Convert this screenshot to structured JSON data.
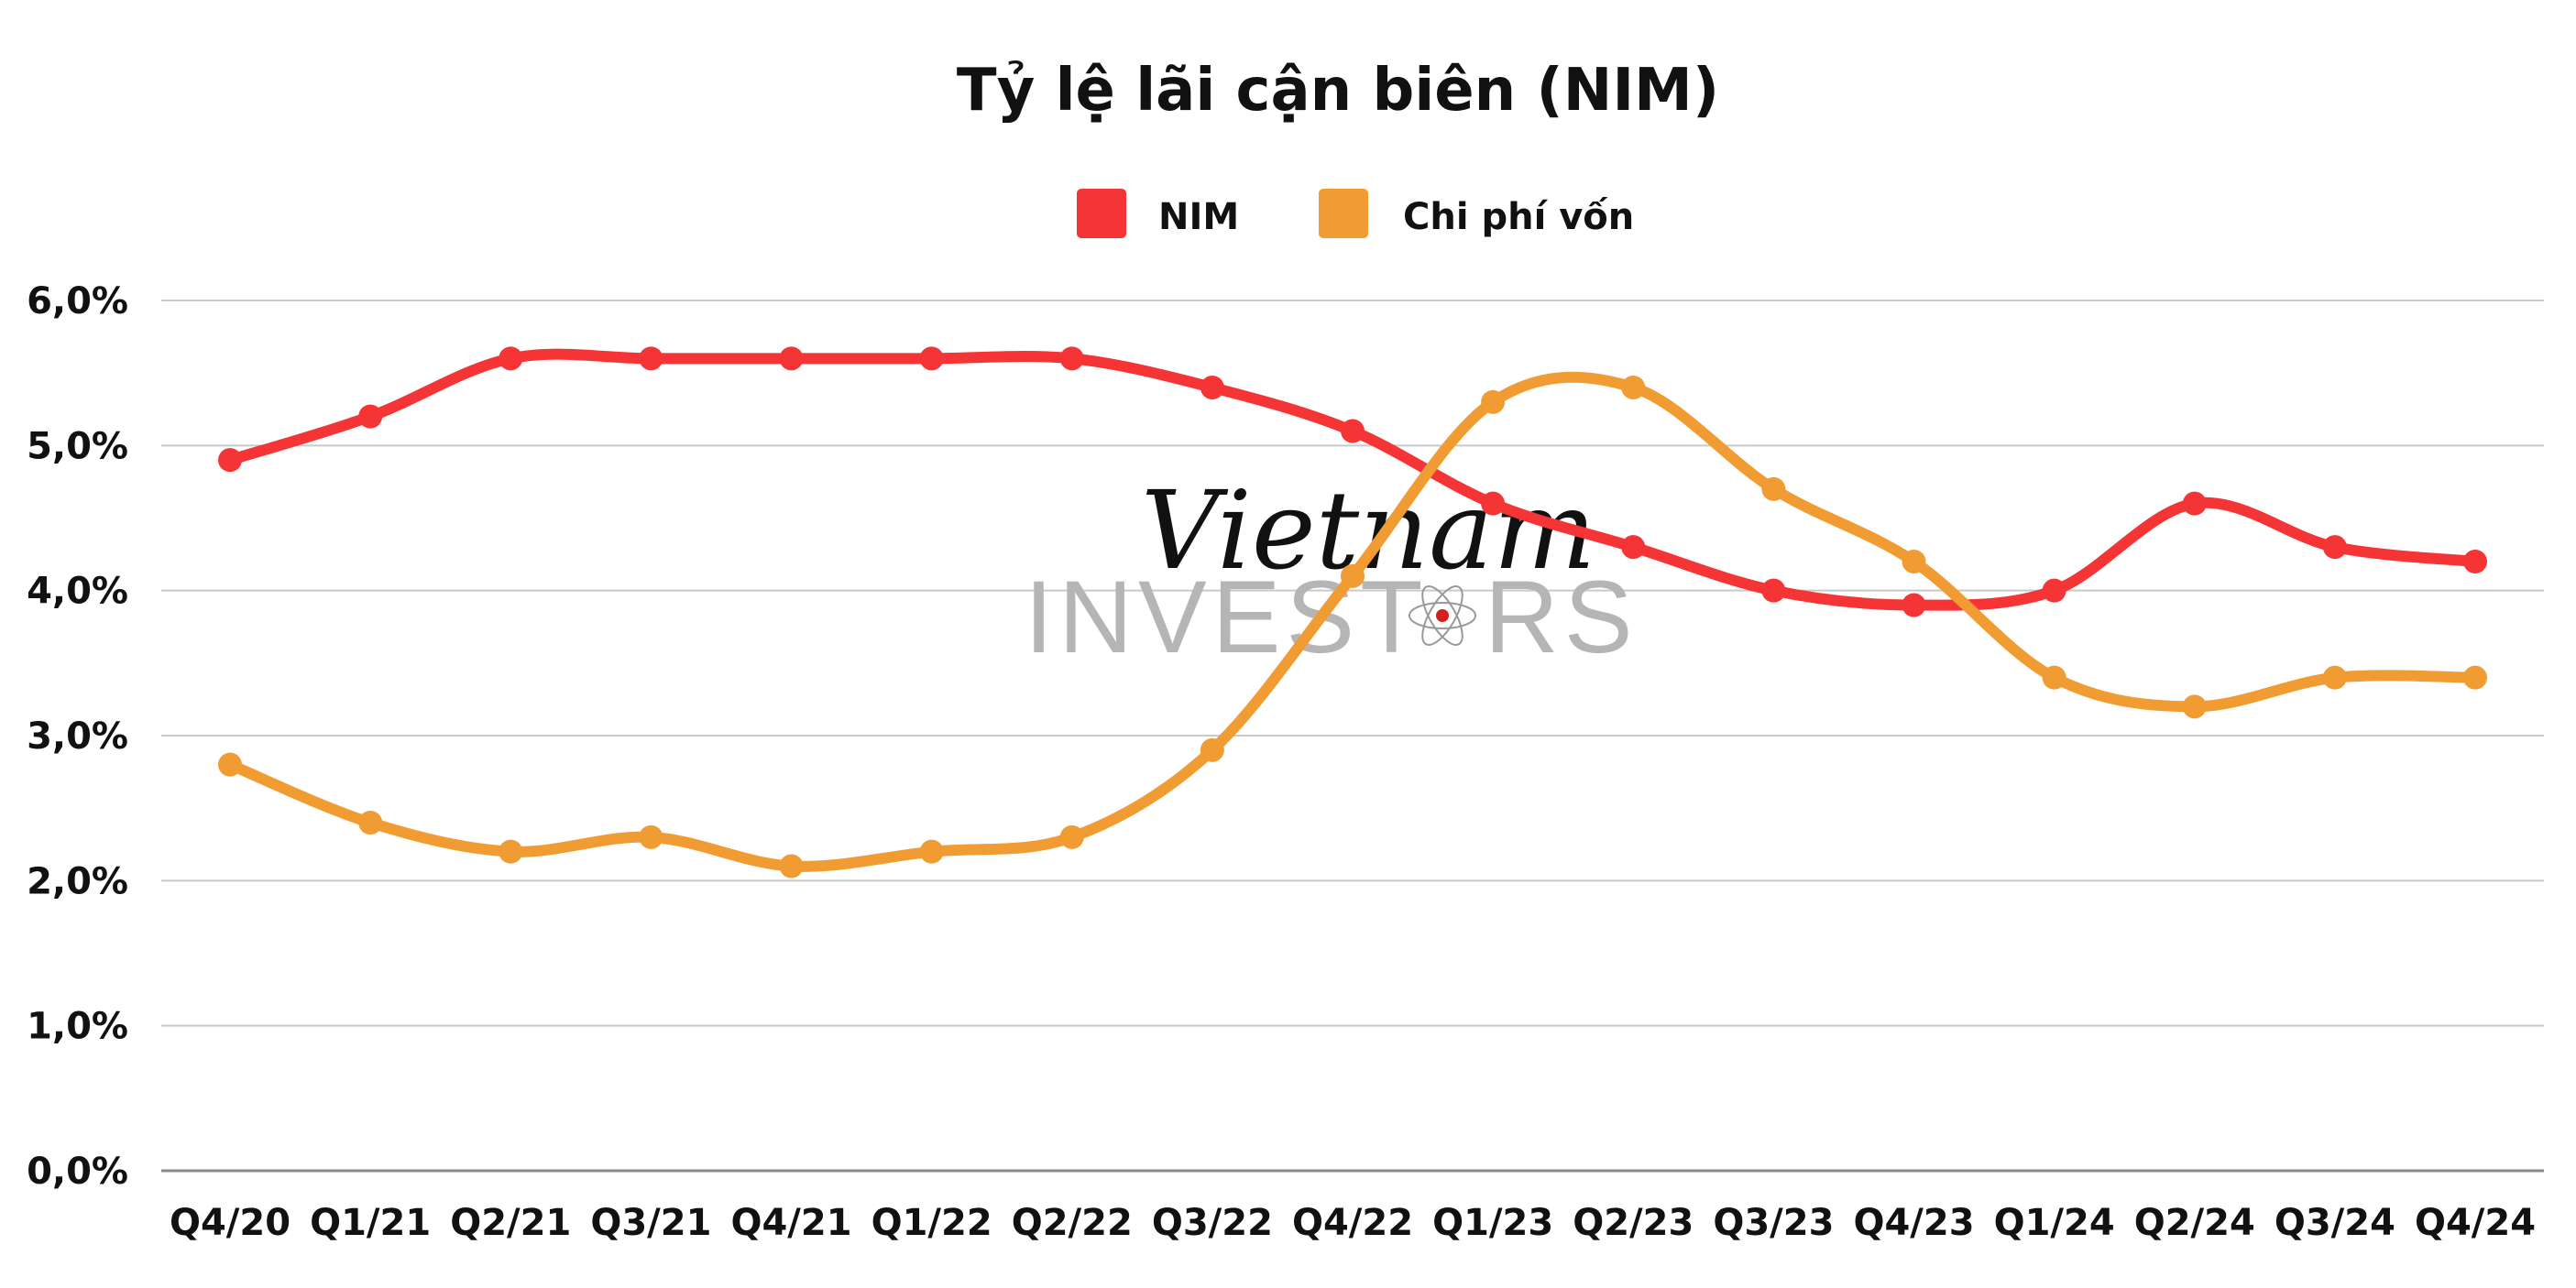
{
  "chart_data": {
    "type": "line",
    "title": "Tỷ lệ lãi cận biên (NIM)",
    "categories": [
      "Q4/20",
      "Q1/21",
      "Q2/21",
      "Q3/21",
      "Q4/21",
      "Q1/22",
      "Q2/22",
      "Q3/22",
      "Q4/22",
      "Q1/23",
      "Q2/23",
      "Q3/23",
      "Q4/23",
      "Q1/24",
      "Q2/24",
      "Q3/24",
      "Q4/24"
    ],
    "series": [
      {
        "name": "NIM",
        "color": "#f53535",
        "values": [
          4.9,
          5.2,
          5.6,
          5.6,
          5.6,
          5.6,
          5.6,
          5.4,
          5.1,
          4.6,
          4.3,
          4.0,
          3.9,
          4.0,
          4.6,
          4.3,
          4.2
        ]
      },
      {
        "name": "Chi phí vốn",
        "color": "#f19c32",
        "values": [
          2.8,
          2.4,
          2.2,
          2.3,
          2.1,
          2.2,
          2.3,
          2.9,
          4.1,
          5.3,
          5.4,
          4.7,
          4.2,
          3.4,
          3.2,
          3.4,
          3.4
        ]
      }
    ],
    "yticks": [
      "0,0%",
      "1,0%",
      "2,0%",
      "3,0%",
      "4,0%",
      "5,0%",
      "6,0%"
    ],
    "ylim": [
      0,
      6
    ],
    "xlabel": "",
    "ylabel": "",
    "grid": true,
    "legend": "top-center",
    "smooth": true
  },
  "watermark": {
    "script": "Vietnam",
    "caps_left": "INVEST",
    "caps_right": "RS"
  }
}
